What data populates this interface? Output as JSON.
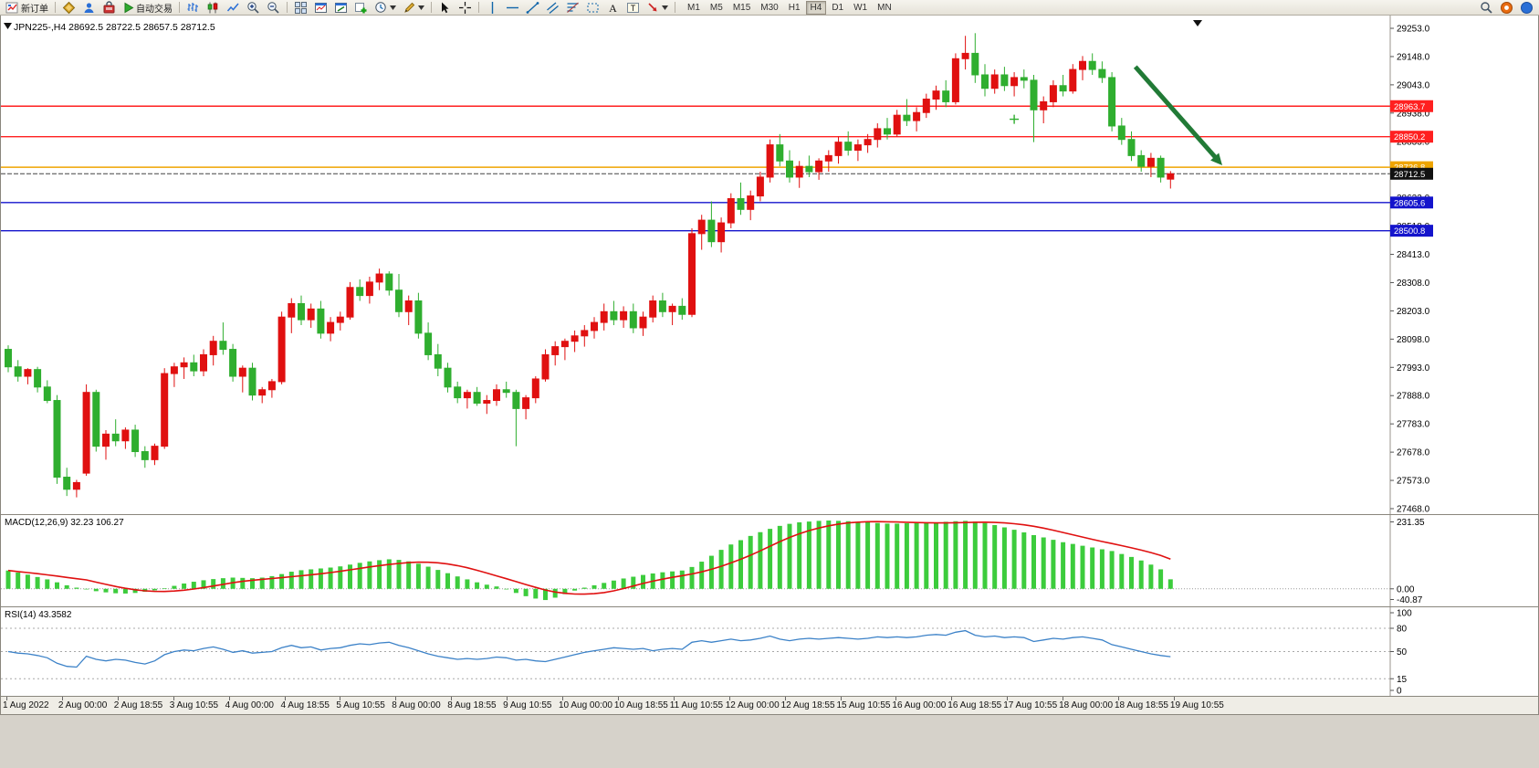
{
  "toolbar": {
    "new_order_label": "新订单",
    "auto_trading_label": "自动交易",
    "timeframes": [
      "M1",
      "M5",
      "M15",
      "M30",
      "H1",
      "H4",
      "D1",
      "W1",
      "MN"
    ],
    "active_timeframe": "H4"
  },
  "chart": {
    "title": "JPN225-,H4 28692.5 28722.5 28657.5 28712.5",
    "symbol": "JPN225-",
    "period": "H4",
    "open": "28692.5",
    "high": "28722.5",
    "low": "28657.5",
    "close": "28712.5"
  },
  "chart_data": {
    "type": "candlestick",
    "title": "JPN225- H4 price chart",
    "y_ticks": [
      29253.0,
      29148.0,
      29043.0,
      28938.0,
      28833.0,
      28728.0,
      28623.0,
      28518.0,
      28413.0,
      28308.0,
      28203.0,
      28098.0,
      27993.0,
      27888.0,
      27783.0,
      27678.0,
      27573.0,
      27468.0
    ],
    "x_labels": [
      "1 Aug 2022",
      "2 Aug 00:00",
      "2 Aug 18:55",
      "3 Aug 10:55",
      "4 Aug 00:00",
      "4 Aug 18:55",
      "5 Aug 10:55",
      "8 Aug 00:00",
      "8 Aug 18:55",
      "9 Aug 10:55",
      "10 Aug 00:00",
      "10 Aug 18:55",
      "11 Aug 10:55",
      "12 Aug 00:00",
      "12 Aug 18:55",
      "15 Aug 10:55",
      "16 Aug 00:00",
      "16 Aug 18:55",
      "17 Aug 10:55",
      "18 Aug 00:00",
      "18 Aug 18:55",
      "19 Aug 10:55"
    ],
    "current_price": 28712.5,
    "current_price_label": "28712.5",
    "hlines": [
      {
        "price": 28963.7,
        "label": "28963.7",
        "color": "#ff2020"
      },
      {
        "price": 28850.2,
        "label": "28850.2",
        "color": "#ff2020"
      },
      {
        "price": 28736.8,
        "label": "28736.8",
        "color": "#efa500"
      },
      {
        "price": 28605.6,
        "label": "28605.6",
        "color": "#1414cc"
      },
      {
        "price": 28500.8,
        "label": "28500.8",
        "color": "#1414cc"
      }
    ],
    "colors": {
      "up": "#e01010",
      "down": "#2fae2f",
      "macd_histogram": "#3ccc3c",
      "macd_signal": "#e01010",
      "rsi_line": "#3c82c8",
      "current_price_line": "#444444",
      "arrow": "#217a36"
    },
    "candles": [
      [
        28060,
        28075,
        27975,
        27995
      ],
      [
        27995,
        28020,
        27940,
        27960
      ],
      [
        27960,
        27990,
        27930,
        27985
      ],
      [
        27985,
        27995,
        27900,
        27920
      ],
      [
        27920,
        27945,
        27860,
        27870
      ],
      [
        27870,
        27890,
        27560,
        27585
      ],
      [
        27585,
        27620,
        27515,
        27540
      ],
      [
        27540,
        27575,
        27510,
        27565
      ],
      [
        27600,
        27930,
        27590,
        27900
      ],
      [
        27900,
        27910,
        27680,
        27700
      ],
      [
        27700,
        27760,
        27650,
        27745
      ],
      [
        27745,
        27800,
        27700,
        27720
      ],
      [
        27720,
        27770,
        27690,
        27760
      ],
      [
        27760,
        27780,
        27660,
        27680
      ],
      [
        27680,
        27700,
        27620,
        27650
      ],
      [
        27650,
        27710,
        27630,
        27700
      ],
      [
        27700,
        27990,
        27690,
        27970
      ],
      [
        27970,
        28010,
        27920,
        27995
      ],
      [
        27995,
        28030,
        27950,
        28010
      ],
      [
        28010,
        28040,
        27960,
        27980
      ],
      [
        27980,
        28060,
        27960,
        28040
      ],
      [
        28040,
        28110,
        28000,
        28090
      ],
      [
        28090,
        28160,
        28040,
        28060
      ],
      [
        28060,
        28080,
        27940,
        27960
      ],
      [
        27960,
        28000,
        27900,
        27990
      ],
      [
        27990,
        28010,
        27870,
        27890
      ],
      [
        27890,
        27920,
        27860,
        27910
      ],
      [
        27910,
        27950,
        27880,
        27940
      ],
      [
        27940,
        28200,
        27930,
        28180
      ],
      [
        28180,
        28250,
        28120,
        28230
      ],
      [
        28230,
        28260,
        28150,
        28170
      ],
      [
        28170,
        28230,
        28140,
        28210
      ],
      [
        28210,
        28240,
        28100,
        28120
      ],
      [
        28120,
        28180,
        28090,
        28160
      ],
      [
        28160,
        28200,
        28130,
        28180
      ],
      [
        28180,
        28310,
        28170,
        28290
      ],
      [
        28290,
        28320,
        28240,
        28260
      ],
      [
        28260,
        28330,
        28230,
        28310
      ],
      [
        28310,
        28360,
        28280,
        28340
      ],
      [
        28340,
        28350,
        28260,
        28280
      ],
      [
        28280,
        28340,
        28180,
        28200
      ],
      [
        28200,
        28260,
        28150,
        28240
      ],
      [
        28240,
        28270,
        28100,
        28120
      ],
      [
        28120,
        28160,
        28020,
        28040
      ],
      [
        28040,
        28080,
        27960,
        27990
      ],
      [
        27990,
        28010,
        27900,
        27920
      ],
      [
        27920,
        27940,
        27860,
        27880
      ],
      [
        27880,
        27910,
        27840,
        27900
      ],
      [
        27900,
        27920,
        27850,
        27860
      ],
      [
        27860,
        27890,
        27820,
        27870
      ],
      [
        27870,
        27930,
        27850,
        27910
      ],
      [
        27910,
        27940,
        27880,
        27900
      ],
      [
        27900,
        27910,
        27700,
        27840
      ],
      [
        27840,
        27890,
        27800,
        27880
      ],
      [
        27880,
        27960,
        27860,
        27950
      ],
      [
        27950,
        28060,
        27940,
        28040
      ],
      [
        28040,
        28090,
        28000,
        28070
      ],
      [
        28070,
        28100,
        28020,
        28090
      ],
      [
        28090,
        28130,
        28050,
        28110
      ],
      [
        28110,
        28150,
        28070,
        28130
      ],
      [
        28130,
        28180,
        28100,
        28160
      ],
      [
        28160,
        28230,
        28130,
        28200
      ],
      [
        28200,
        28240,
        28150,
        28170
      ],
      [
        28170,
        28220,
        28140,
        28200
      ],
      [
        28200,
        28230,
        28120,
        28140
      ],
      [
        28140,
        28200,
        28110,
        28180
      ],
      [
        28180,
        28260,
        28160,
        28240
      ],
      [
        28240,
        28270,
        28180,
        28200
      ],
      [
        28200,
        28230,
        28150,
        28220
      ],
      [
        28220,
        28250,
        28170,
        28190
      ],
      [
        28190,
        28510,
        28180,
        28490
      ],
      [
        28490,
        28560,
        28430,
        28540
      ],
      [
        28540,
        28610,
        28440,
        28460
      ],
      [
        28460,
        28550,
        28420,
        28530
      ],
      [
        28530,
        28640,
        28510,
        28620
      ],
      [
        28620,
        28680,
        28560,
        28580
      ],
      [
        28580,
        28650,
        28540,
        28630
      ],
      [
        28630,
        28720,
        28610,
        28700
      ],
      [
        28700,
        28840,
        28680,
        28820
      ],
      [
        28820,
        28860,
        28740,
        28760
      ],
      [
        28760,
        28800,
        28680,
        28700
      ],
      [
        28700,
        28760,
        28660,
        28740
      ],
      [
        28740,
        28780,
        28700,
        28720
      ],
      [
        28720,
        28770,
        28690,
        28760
      ],
      [
        28760,
        28800,
        28720,
        28780
      ],
      [
        28780,
        28850,
        28750,
        28830
      ],
      [
        28830,
        28870,
        28780,
        28800
      ],
      [
        28800,
        28840,
        28760,
        28820
      ],
      [
        28820,
        28860,
        28790,
        28840
      ],
      [
        28840,
        28900,
        28810,
        28880
      ],
      [
        28880,
        28920,
        28840,
        28860
      ],
      [
        28860,
        28950,
        28850,
        28930
      ],
      [
        28930,
        28990,
        28890,
        28910
      ],
      [
        28910,
        28960,
        28870,
        28940
      ],
      [
        28940,
        29010,
        28920,
        28990
      ],
      [
        28990,
        29040,
        28950,
        29020
      ],
      [
        29020,
        29060,
        28960,
        28980
      ],
      [
        28980,
        29160,
        28970,
        29140
      ],
      [
        29140,
        29225,
        29100,
        29160
      ],
      [
        29160,
        29235,
        29050,
        29080
      ],
      [
        29080,
        29120,
        29000,
        29030
      ],
      [
        29030,
        29100,
        29010,
        29080
      ],
      [
        29080,
        29110,
        29020,
        29040
      ],
      [
        29040,
        29090,
        29000,
        29070
      ],
      [
        29070,
        29100,
        29030,
        29060
      ],
      [
        29060,
        29080,
        28830,
        28950
      ],
      [
        28950,
        29000,
        28900,
        28980
      ],
      [
        28980,
        29060,
        28960,
        29040
      ],
      [
        29040,
        29080,
        29000,
        29020
      ],
      [
        29020,
        29120,
        29010,
        29100
      ],
      [
        29100,
        29150,
        29060,
        29130
      ],
      [
        29130,
        29160,
        29080,
        29100
      ],
      [
        29100,
        29130,
        29050,
        29070
      ],
      [
        29070,
        29090,
        28870,
        28890
      ],
      [
        28890,
        28920,
        28820,
        28840
      ],
      [
        28840,
        28870,
        28760,
        28780
      ],
      [
        28780,
        28800,
        28720,
        28740
      ],
      [
        28740,
        28790,
        28700,
        28770
      ],
      [
        28770,
        28780,
        28680,
        28700
      ],
      [
        28692.5,
        28722.5,
        28657.5,
        28712.5
      ]
    ],
    "macd": {
      "label": "MACD(12,26,9) 32.23 106.27",
      "scale_labels": [
        "231.35",
        "0.00",
        "-40.87"
      ],
      "max": 231.35,
      "min": -40.87,
      "values": [
        62,
        55,
        48,
        40,
        32,
        22,
        12,
        4,
        -2,
        -8,
        -12,
        -15,
        -16,
        -14,
        -10,
        -5,
        2,
        10,
        18,
        24,
        29,
        33,
        36,
        38,
        37,
        36,
        38,
        43,
        50,
        58,
        63,
        66,
        69,
        72,
        76,
        82,
        88,
        93,
        97,
        100,
        98,
        93,
        85,
        75,
        64,
        53,
        42,
        32,
        22,
        14,
        8,
        -2,
        -14,
        -25,
        -33,
        -38,
        -30,
        -18,
        -6,
        4,
        12,
        20,
        28,
        35,
        41,
        47,
        52,
        56,
        59,
        62,
        74,
        92,
        112,
        132,
        150,
        165,
        179,
        192,
        203,
        213,
        220,
        225,
        228,
        230,
        231.35,
        230,
        229,
        227,
        225,
        223,
        221,
        221,
        222,
        223,
        224,
        225,
        227,
        229,
        230,
        228,
        223,
        216,
        208,
        200,
        191,
        182,
        174,
        166,
        158,
        152,
        146,
        140,
        134,
        128,
        118,
        108,
        96,
        82,
        66,
        32.23
      ]
    },
    "rsi": {
      "label": "RSI(14) 43.3582",
      "levels": [
        100,
        80,
        50,
        15,
        0
      ],
      "values": [
        50,
        48,
        47,
        45,
        42,
        35,
        31,
        30,
        44,
        40,
        38,
        40,
        39,
        36,
        34,
        38,
        46,
        50,
        52,
        51,
        54,
        56,
        53,
        49,
        51,
        48,
        49,
        50,
        55,
        58,
        55,
        56,
        52,
        54,
        55,
        58,
        60,
        59,
        61,
        62,
        58,
        55,
        51,
        47,
        44,
        42,
        40,
        41,
        40,
        41,
        43,
        42,
        39,
        40,
        38,
        37,
        40,
        43,
        46,
        49,
        51,
        53,
        55,
        54,
        53,
        54,
        51,
        53,
        54,
        53,
        62,
        64,
        62,
        64,
        66,
        64,
        65,
        67,
        70,
        66,
        64,
        66,
        67,
        66,
        67,
        68,
        67,
        66,
        67,
        69,
        68,
        69,
        68,
        69,
        71,
        72,
        71,
        75,
        77,
        71,
        69,
        70,
        68,
        69,
        68,
        63,
        65,
        67,
        66,
        68,
        69,
        67,
        65,
        59,
        56,
        53,
        50,
        47,
        45,
        43.36
      ]
    },
    "arrow": {
      "from_index": 115.4,
      "from_price": 29110,
      "to_index": 124.3,
      "to_price": 28744
    },
    "cross_marker": {
      "index": 103,
      "price": 28915
    }
  }
}
